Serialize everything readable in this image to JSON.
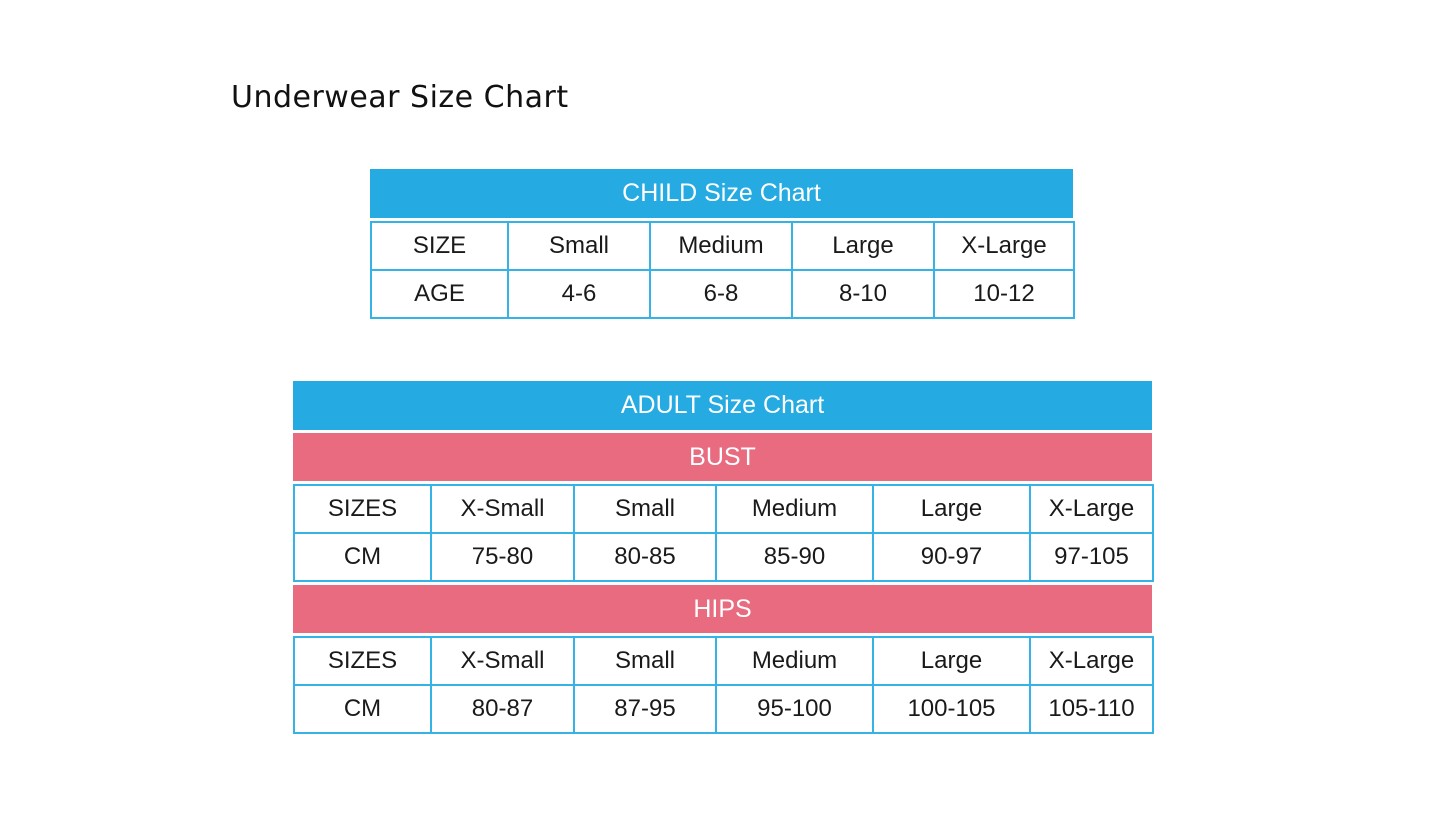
{
  "page": {
    "title": "Underwear Size Chart"
  },
  "child_chart": {
    "title": "CHILD Size Chart",
    "rows": [
      [
        "SIZE",
        "Small",
        "Medium",
        "Large",
        "X-Large"
      ],
      [
        "AGE",
        "4-6",
        "6-8",
        "8-10",
        "10-12"
      ]
    ]
  },
  "adult_chart": {
    "title": "ADULT Size Chart",
    "sections": [
      {
        "title": "BUST",
        "rows": [
          [
            "SIZES",
            "X-Small",
            "Small",
            "Medium",
            "Large",
            "X-Large"
          ],
          [
            "CM",
            "75-80",
            "80-85",
            "85-90",
            "90-97",
            "97-105"
          ]
        ]
      },
      {
        "title": "HIPS",
        "rows": [
          [
            "SIZES",
            "X-Small",
            "Small",
            "Medium",
            "Large",
            "X-Large"
          ],
          [
            "CM",
            "80-87",
            "87-95",
            "95-100",
            "100-105",
            "105-110"
          ]
        ]
      }
    ]
  },
  "colors": {
    "header_blue": "#25abe2",
    "section_pink": "#e86b80",
    "border": "#35b2e6"
  }
}
